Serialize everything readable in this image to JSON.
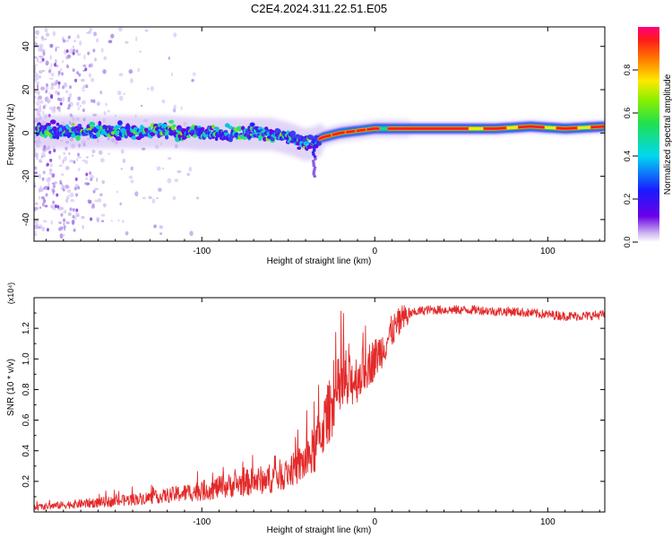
{
  "title": "C2E4.2024.311.22.51.E05",
  "colors": {
    "axis": "#000000",
    "snr_line": "#e32a2a",
    "background": "#ffffff"
  },
  "chart_data": [
    {
      "type": "heatmap",
      "title": "C2E4.2024.311.22.51.E05",
      "xlabel": "Height of straight line (km)",
      "ylabel": "Frequency (Hz)",
      "xlim": [
        -197,
        133
      ],
      "ylim": [
        -50,
        49
      ],
      "xticks": [
        -100,
        0,
        100
      ],
      "xtick_labels": [
        "-100",
        "0",
        "100"
      ],
      "yticks": [
        -40,
        -20,
        0,
        20,
        40
      ],
      "ytick_labels": [
        "-40",
        "-20",
        "0",
        "20",
        "40"
      ],
      "ridge": [
        {
          "x": -195,
          "y": 1
        },
        {
          "x": -150,
          "y": 1
        },
        {
          "x": -120,
          "y": 1
        },
        {
          "x": -100,
          "y": 0
        },
        {
          "x": -80,
          "y": 0
        },
        {
          "x": -60,
          "y": 0
        },
        {
          "x": -50,
          "y": -2
        },
        {
          "x": -40,
          "y": -5
        },
        {
          "x": -35,
          "y": -4
        },
        {
          "x": -30,
          "y": -2
        },
        {
          "x": -20,
          "y": 0
        },
        {
          "x": -10,
          "y": 1
        },
        {
          "x": 0,
          "y": 2
        },
        {
          "x": 10,
          "y": 2
        },
        {
          "x": 40,
          "y": 2
        },
        {
          "x": 70,
          "y": 2
        },
        {
          "x": 90,
          "y": 3
        },
        {
          "x": 110,
          "y": 2
        },
        {
          "x": 133,
          "y": 3
        }
      ],
      "colorbar": {
        "label": "Normalized spectral amplitude",
        "range": [
          0,
          1
        ],
        "ticks": [
          0.0,
          0.2,
          0.4,
          0.6,
          0.8
        ],
        "tick_labels": [
          "0.0",
          "0.2",
          "0.4",
          "0.6",
          "0.8"
        ]
      }
    },
    {
      "type": "line",
      "xlabel": "Height of straight line (km)",
      "ylabel": "SNR (10 * v/v)",
      "y_multiplier": "(x10⁴)",
      "xlim": [
        -197,
        133
      ],
      "ylim": [
        0,
        1.4
      ],
      "xticks": [
        -100,
        0,
        100
      ],
      "xtick_labels": [
        "-100",
        "0",
        "100"
      ],
      "yticks": [
        0.2,
        0.4,
        0.6,
        0.8,
        1.0,
        1.2
      ],
      "ytick_labels": [
        "0.2",
        "0.4",
        "0.6",
        "0.8",
        "1.0",
        "1.2"
      ],
      "series": [
        {
          "name": "SNR",
          "x": [
            -197,
            -175,
            -150,
            -125,
            -100,
            -80,
            -60,
            -50,
            -40,
            -35,
            -30,
            -25,
            -20,
            -15,
            -10,
            -5,
            0,
            5,
            10,
            15,
            20,
            25,
            30,
            40,
            50,
            60,
            70,
            80,
            90,
            100,
            110,
            120,
            133
          ],
          "values": [
            0.03,
            0.05,
            0.07,
            0.1,
            0.14,
            0.18,
            0.22,
            0.26,
            0.33,
            0.4,
            0.55,
            0.7,
            0.8,
            0.85,
            0.88,
            0.95,
            1.0,
            1.08,
            1.18,
            1.25,
            1.29,
            1.31,
            1.32,
            1.32,
            1.32,
            1.32,
            1.31,
            1.31,
            1.3,
            1.29,
            1.28,
            1.28,
            1.29
          ]
        }
      ]
    }
  ]
}
